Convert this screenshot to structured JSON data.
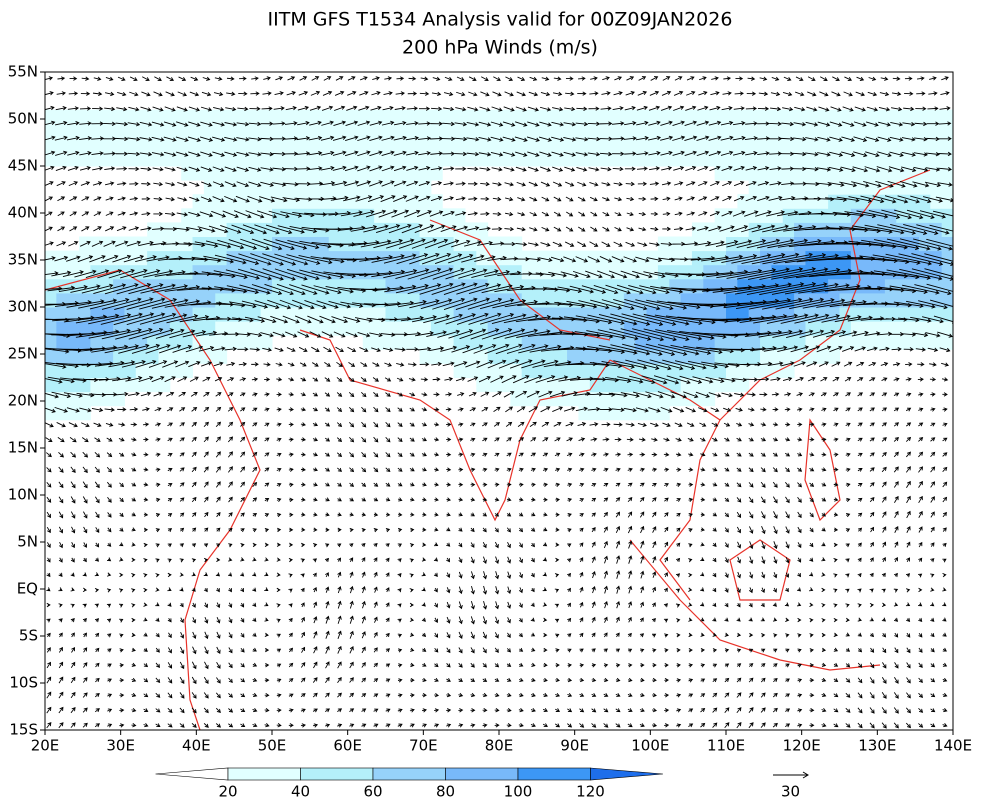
{
  "chart_data": {
    "type": "vector",
    "title": "IITM GFS T1534 Analysis valid for 00Z09JAN2026",
    "subtitle": "200 hPa Winds (m/s)",
    "xlim": [
      20,
      140
    ],
    "xticks": [
      {
        "value": 20,
        "label": "20E"
      },
      {
        "value": 30,
        "label": "30E"
      },
      {
        "value": 40,
        "label": "40E"
      },
      {
        "value": 50,
        "label": "50E"
      },
      {
        "value": 60,
        "label": "60E"
      },
      {
        "value": 70,
        "label": "70E"
      },
      {
        "value": 80,
        "label": "80E"
      },
      {
        "value": 90,
        "label": "90E"
      },
      {
        "value": 100,
        "label": "100E"
      },
      {
        "value": 110,
        "label": "110E"
      },
      {
        "value": 120,
        "label": "120E"
      },
      {
        "value": 130,
        "label": "130E"
      },
      {
        "value": 140,
        "label": "140E"
      }
    ],
    "ylim": [
      -15,
      55
    ],
    "yticks": [
      {
        "value": 55,
        "label": "55N"
      },
      {
        "value": 50,
        "label": "50N"
      },
      {
        "value": 45,
        "label": "45N"
      },
      {
        "value": 40,
        "label": "40N"
      },
      {
        "value": 35,
        "label": "35N"
      },
      {
        "value": 30,
        "label": "30N"
      },
      {
        "value": 25,
        "label": "25N"
      },
      {
        "value": 20,
        "label": "20N"
      },
      {
        "value": 15,
        "label": "15N"
      },
      {
        "value": 10,
        "label": "10N"
      },
      {
        "value": 5,
        "label": "5N"
      },
      {
        "value": 0,
        "label": "EQ"
      },
      {
        "value": -5,
        "label": "5S"
      },
      {
        "value": -10,
        "label": "10S"
      },
      {
        "value": -15,
        "label": "15S"
      }
    ],
    "colorbar": {
      "ticks": [
        20,
        40,
        60,
        80,
        100,
        120
      ],
      "colors": [
        "#ffffff",
        "#e1ffff",
        "#b4f0fa",
        "#96d2fa",
        "#78b9fa",
        "#3c97f5",
        "#1e6eeb"
      ]
    },
    "reference_vector": 30,
    "coastline_color": "#e8332a"
  }
}
